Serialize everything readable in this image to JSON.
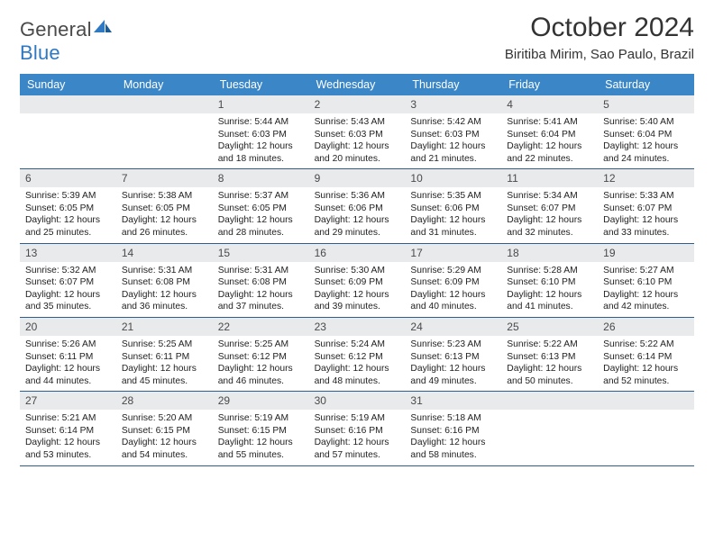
{
  "brand": {
    "word1": "General",
    "word2": "Blue"
  },
  "title": "October 2024",
  "location": "Biritiba Mirim, Sao Paulo, Brazil",
  "colors": {
    "accent": "#3b86c7",
    "rule": "#2e5f8a",
    "daystrip": "#e9eaec",
    "text": "#222222",
    "muted": "#4a4a4a",
    "bg": "#ffffff"
  },
  "dow": [
    "Sunday",
    "Monday",
    "Tuesday",
    "Wednesday",
    "Thursday",
    "Friday",
    "Saturday"
  ],
  "leading_blanks": 2,
  "days": [
    {
      "n": 1,
      "sunrise": "5:44 AM",
      "sunset": "6:03 PM",
      "daylight": "12 hours and 18 minutes."
    },
    {
      "n": 2,
      "sunrise": "5:43 AM",
      "sunset": "6:03 PM",
      "daylight": "12 hours and 20 minutes."
    },
    {
      "n": 3,
      "sunrise": "5:42 AM",
      "sunset": "6:03 PM",
      "daylight": "12 hours and 21 minutes."
    },
    {
      "n": 4,
      "sunrise": "5:41 AM",
      "sunset": "6:04 PM",
      "daylight": "12 hours and 22 minutes."
    },
    {
      "n": 5,
      "sunrise": "5:40 AM",
      "sunset": "6:04 PM",
      "daylight": "12 hours and 24 minutes."
    },
    {
      "n": 6,
      "sunrise": "5:39 AM",
      "sunset": "6:05 PM",
      "daylight": "12 hours and 25 minutes."
    },
    {
      "n": 7,
      "sunrise": "5:38 AM",
      "sunset": "6:05 PM",
      "daylight": "12 hours and 26 minutes."
    },
    {
      "n": 8,
      "sunrise": "5:37 AM",
      "sunset": "6:05 PM",
      "daylight": "12 hours and 28 minutes."
    },
    {
      "n": 9,
      "sunrise": "5:36 AM",
      "sunset": "6:06 PM",
      "daylight": "12 hours and 29 minutes."
    },
    {
      "n": 10,
      "sunrise": "5:35 AM",
      "sunset": "6:06 PM",
      "daylight": "12 hours and 31 minutes."
    },
    {
      "n": 11,
      "sunrise": "5:34 AM",
      "sunset": "6:07 PM",
      "daylight": "12 hours and 32 minutes."
    },
    {
      "n": 12,
      "sunrise": "5:33 AM",
      "sunset": "6:07 PM",
      "daylight": "12 hours and 33 minutes."
    },
    {
      "n": 13,
      "sunrise": "5:32 AM",
      "sunset": "6:07 PM",
      "daylight": "12 hours and 35 minutes."
    },
    {
      "n": 14,
      "sunrise": "5:31 AM",
      "sunset": "6:08 PM",
      "daylight": "12 hours and 36 minutes."
    },
    {
      "n": 15,
      "sunrise": "5:31 AM",
      "sunset": "6:08 PM",
      "daylight": "12 hours and 37 minutes."
    },
    {
      "n": 16,
      "sunrise": "5:30 AM",
      "sunset": "6:09 PM",
      "daylight": "12 hours and 39 minutes."
    },
    {
      "n": 17,
      "sunrise": "5:29 AM",
      "sunset": "6:09 PM",
      "daylight": "12 hours and 40 minutes."
    },
    {
      "n": 18,
      "sunrise": "5:28 AM",
      "sunset": "6:10 PM",
      "daylight": "12 hours and 41 minutes."
    },
    {
      "n": 19,
      "sunrise": "5:27 AM",
      "sunset": "6:10 PM",
      "daylight": "12 hours and 42 minutes."
    },
    {
      "n": 20,
      "sunrise": "5:26 AM",
      "sunset": "6:11 PM",
      "daylight": "12 hours and 44 minutes."
    },
    {
      "n": 21,
      "sunrise": "5:25 AM",
      "sunset": "6:11 PM",
      "daylight": "12 hours and 45 minutes."
    },
    {
      "n": 22,
      "sunrise": "5:25 AM",
      "sunset": "6:12 PM",
      "daylight": "12 hours and 46 minutes."
    },
    {
      "n": 23,
      "sunrise": "5:24 AM",
      "sunset": "6:12 PM",
      "daylight": "12 hours and 48 minutes."
    },
    {
      "n": 24,
      "sunrise": "5:23 AM",
      "sunset": "6:13 PM",
      "daylight": "12 hours and 49 minutes."
    },
    {
      "n": 25,
      "sunrise": "5:22 AM",
      "sunset": "6:13 PM",
      "daylight": "12 hours and 50 minutes."
    },
    {
      "n": 26,
      "sunrise": "5:22 AM",
      "sunset": "6:14 PM",
      "daylight": "12 hours and 52 minutes."
    },
    {
      "n": 27,
      "sunrise": "5:21 AM",
      "sunset": "6:14 PM",
      "daylight": "12 hours and 53 minutes."
    },
    {
      "n": 28,
      "sunrise": "5:20 AM",
      "sunset": "6:15 PM",
      "daylight": "12 hours and 54 minutes."
    },
    {
      "n": 29,
      "sunrise": "5:19 AM",
      "sunset": "6:15 PM",
      "daylight": "12 hours and 55 minutes."
    },
    {
      "n": 30,
      "sunrise": "5:19 AM",
      "sunset": "6:16 PM",
      "daylight": "12 hours and 57 minutes."
    },
    {
      "n": 31,
      "sunrise": "5:18 AM",
      "sunset": "6:16 PM",
      "daylight": "12 hours and 58 minutes."
    }
  ],
  "labels": {
    "sunrise": "Sunrise: ",
    "sunset": "Sunset: ",
    "daylight": "Daylight: "
  }
}
